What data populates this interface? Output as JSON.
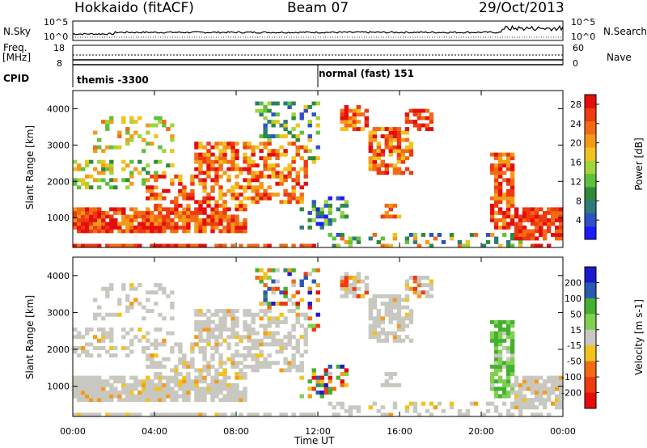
{
  "header": {
    "radar": "Hokkaido (fitACF)",
    "beam": "Beam 07",
    "date": "29/Oct/2013"
  },
  "top_panels": {
    "nsky_label": "N.Sky",
    "nsearch_label": "N.Search",
    "freq_label": "Freq.",
    "freq_unit": "[MHz]",
    "nave_label": "Nave",
    "cpid_label": "CPID",
    "noise_ticks": {
      "top": "10^5",
      "bottom": "10^0"
    },
    "freq_ticks": {
      "top": "18",
      "bottom": "8"
    },
    "nave_ticks": {
      "top": "60",
      "bottom": "0"
    },
    "cpid_segments": [
      {
        "start_hour": 0,
        "label": "themis -3300"
      },
      {
        "start_hour": 12,
        "label": "normal (fast) 151"
      }
    ]
  },
  "chart_data": [
    {
      "type": "heatmap",
      "panel": "power",
      "title": "",
      "xlabel": "Time UT",
      "ylabel": "Slant Range [km]",
      "xlim": [
        0,
        24
      ],
      "ylim": [
        180,
        4500
      ],
      "x_ticks": [
        "00:00",
        "04:00",
        "08:00",
        "12:00",
        "16:00",
        "20:00",
        "00:00"
      ],
      "y_ticks": [
        1000,
        2000,
        3000,
        4000
      ],
      "colorbar": {
        "label": "Power [dB]",
        "ticks": [
          4,
          8,
          12,
          16,
          20,
          24,
          28
        ],
        "range": [
          0,
          30
        ],
        "colors": [
          "#1a1aff",
          "#3050c8",
          "#2e7a7a",
          "#2f8a3a",
          "#5dc23a",
          "#9fd63a",
          "#f2c21e",
          "#f59a18",
          "#f26a14",
          "#ee3a10",
          "#e60d0d"
        ]
      }
    },
    {
      "type": "heatmap",
      "panel": "velocity",
      "title": "",
      "xlabel": "Time UT",
      "ylabel": "Slant Range [km]",
      "xlim": [
        0,
        24
      ],
      "ylim": [
        180,
        4500
      ],
      "x_ticks": [
        "00:00",
        "04:00",
        "08:00",
        "12:00",
        "16:00",
        "20:00",
        "00:00"
      ],
      "y_ticks": [
        1000,
        2000,
        3000,
        4000
      ],
      "colorbar": {
        "label": "Velocity [m s-1]",
        "ticks": [
          200,
          100,
          50,
          15,
          -15,
          -50,
          -100,
          -200
        ],
        "ground_scatter_color": "#c8c8c0",
        "colors": [
          "#1a1acc",
          "#2a5ab0",
          "#2e8a70",
          "#44b030",
          "#80d050",
          "#c8c8c0",
          "#f2c21e",
          "#f59a18",
          "#f26a14",
          "#ee3a10",
          "#e60d0d"
        ]
      }
    }
  ]
}
